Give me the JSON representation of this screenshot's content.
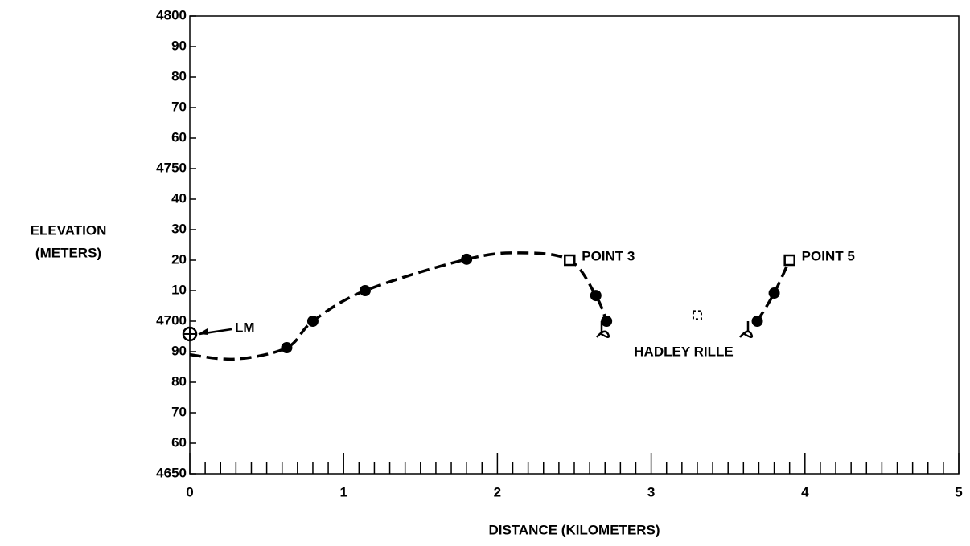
{
  "chart_data": {
    "type": "line",
    "xlabel": "DISTANCE (KILOMETERS)",
    "ylabel": [
      "ELEVATION",
      "(METERS)"
    ],
    "xlim": [
      0,
      5
    ],
    "ylim": [
      4650,
      4800
    ],
    "xticks": [
      0,
      1,
      2,
      3,
      4,
      5
    ],
    "xminorticks": [
      0.1,
      0.2,
      0.3,
      0.4,
      0.5,
      0.6,
      0.7,
      0.8,
      0.9,
      1.1,
      1.2,
      1.3,
      1.4,
      1.5,
      1.6,
      1.7,
      1.8,
      1.9,
      2.1,
      2.2,
      2.3,
      2.4,
      2.5,
      2.6,
      2.7,
      2.8,
      2.9,
      3.1,
      3.2,
      3.3,
      3.4,
      3.5,
      3.6,
      3.7,
      3.8,
      3.9,
      4.1,
      4.2,
      4.3,
      4.4,
      4.5,
      4.6,
      4.7,
      4.8,
      4.9
    ],
    "yticks": [
      4650,
      {
        "value": 4660,
        "label": "60"
      },
      {
        "value": 4670,
        "label": "70"
      },
      {
        "value": 4680,
        "label": "80"
      },
      {
        "value": 4690,
        "label": "90"
      },
      4700,
      {
        "value": 4710,
        "label": "10"
      },
      {
        "value": 4720,
        "label": "20"
      },
      {
        "value": 4730,
        "label": "30"
      },
      {
        "value": 4740,
        "label": "40"
      },
      4750,
      {
        "value": 4760,
        "label": "60"
      },
      {
        "value": 4770,
        "label": "70"
      },
      {
        "value": 4780,
        "label": "80"
      },
      {
        "value": 4790,
        "label": "90"
      },
      4800
    ],
    "x": [
      0,
      0.3,
      0.63,
      0.8,
      1.14,
      1.8,
      2.15,
      2.47,
      2.64,
      2.71,
      3.3,
      3.69,
      3.8,
      3.9
    ],
    "series": [
      {
        "color": "#000000",
        "dashed": true,
        "values": [
          4689,
          4687.6,
          4691.3,
          4700,
          4710,
          4720.3,
          4722.4,
          4720,
          4708.4,
          4700,
          null,
          4700,
          4709.2,
          4720
        ]
      }
    ],
    "stations": {
      "x": [
        0.63,
        0.8,
        1.14,
        1.8,
        2.64,
        2.71,
        3.69,
        3.8
      ],
      "values": [
        4691.3,
        4700,
        4710,
        4720.3,
        4708.4,
        4700,
        4700,
        4709.2
      ]
    },
    "points": {
      "x": [
        2.47,
        3.9
      ],
      "values": [
        4720,
        4720
      ],
      "labels": [
        "POINT 3",
        "POINT 5"
      ]
    },
    "open_marker": {
      "x": 3.3,
      "value": 4702
    },
    "lm": {
      "label": "LM",
      "x": 0,
      "value": 4695.8
    },
    "annotation": "HADLEY RILLE"
  }
}
